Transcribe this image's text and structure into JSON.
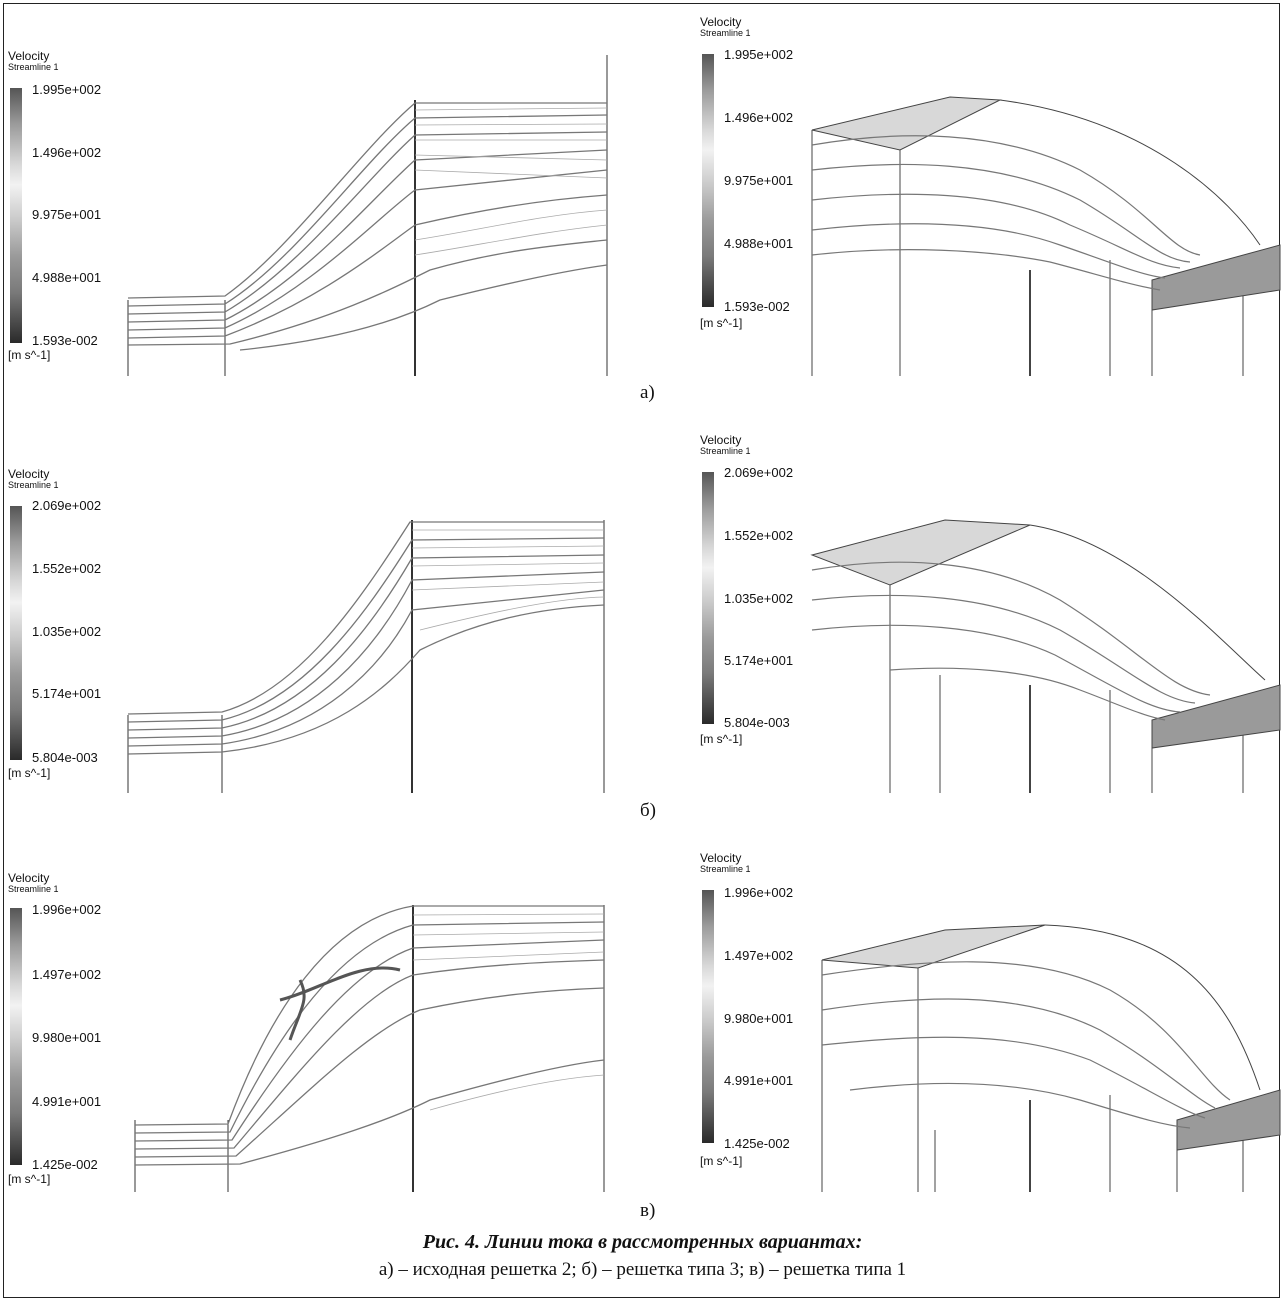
{
  "panels": [
    {
      "id": "a-left",
      "legend": {
        "title": "Velocity",
        "subtitle": "Streamline 1",
        "ticks": [
          "1.995e+002",
          "1.496e+002",
          "9.975e+001",
          "4.988e+001",
          "1.593e-002"
        ],
        "unit": "[m s^-1]"
      }
    },
    {
      "id": "a-right",
      "legend": {
        "title": "Velocity",
        "subtitle": "Streamline 1",
        "ticks": [
          "1.995e+002",
          "1.496e+002",
          "9.975e+001",
          "4.988e+001",
          "1.593e-002"
        ],
        "unit": "[m s^-1]"
      }
    },
    {
      "id": "b-left",
      "legend": {
        "title": "Velocity",
        "subtitle": "Streamline 1",
        "ticks": [
          "2.069e+002",
          "1.552e+002",
          "1.035e+002",
          "5.174e+001",
          "5.804e-003"
        ],
        "unit": "[m s^-1]"
      }
    },
    {
      "id": "b-right",
      "legend": {
        "title": "Velocity",
        "subtitle": "Streamline 1",
        "ticks": [
          "2.069e+002",
          "1.552e+002",
          "1.035e+002",
          "5.174e+001",
          "5.804e-003"
        ],
        "unit": "[m s^-1]"
      }
    },
    {
      "id": "c-left",
      "legend": {
        "title": "Velocity",
        "subtitle": "Streamline 1",
        "ticks": [
          "1.996e+002",
          "1.497e+002",
          "9.980e+001",
          "4.991e+001",
          "1.425e-002"
        ],
        "unit": "[m s^-1]"
      }
    },
    {
      "id": "c-right",
      "legend": {
        "title": "Velocity",
        "subtitle": "Streamline 1",
        "ticks": [
          "1.996e+002",
          "1.497e+002",
          "9.980e+001",
          "4.991e+001",
          "1.425e-002"
        ],
        "unit": "[m s^-1]"
      }
    }
  ],
  "sublabels": [
    "а)",
    "б)",
    "в)"
  ],
  "caption": {
    "title": "Рис. 4. Линии тока в рассмотренных вариантах:",
    "description": "а) – исходная решетка 2; б) – решетка типа 3; в) – решетка типа 1"
  }
}
